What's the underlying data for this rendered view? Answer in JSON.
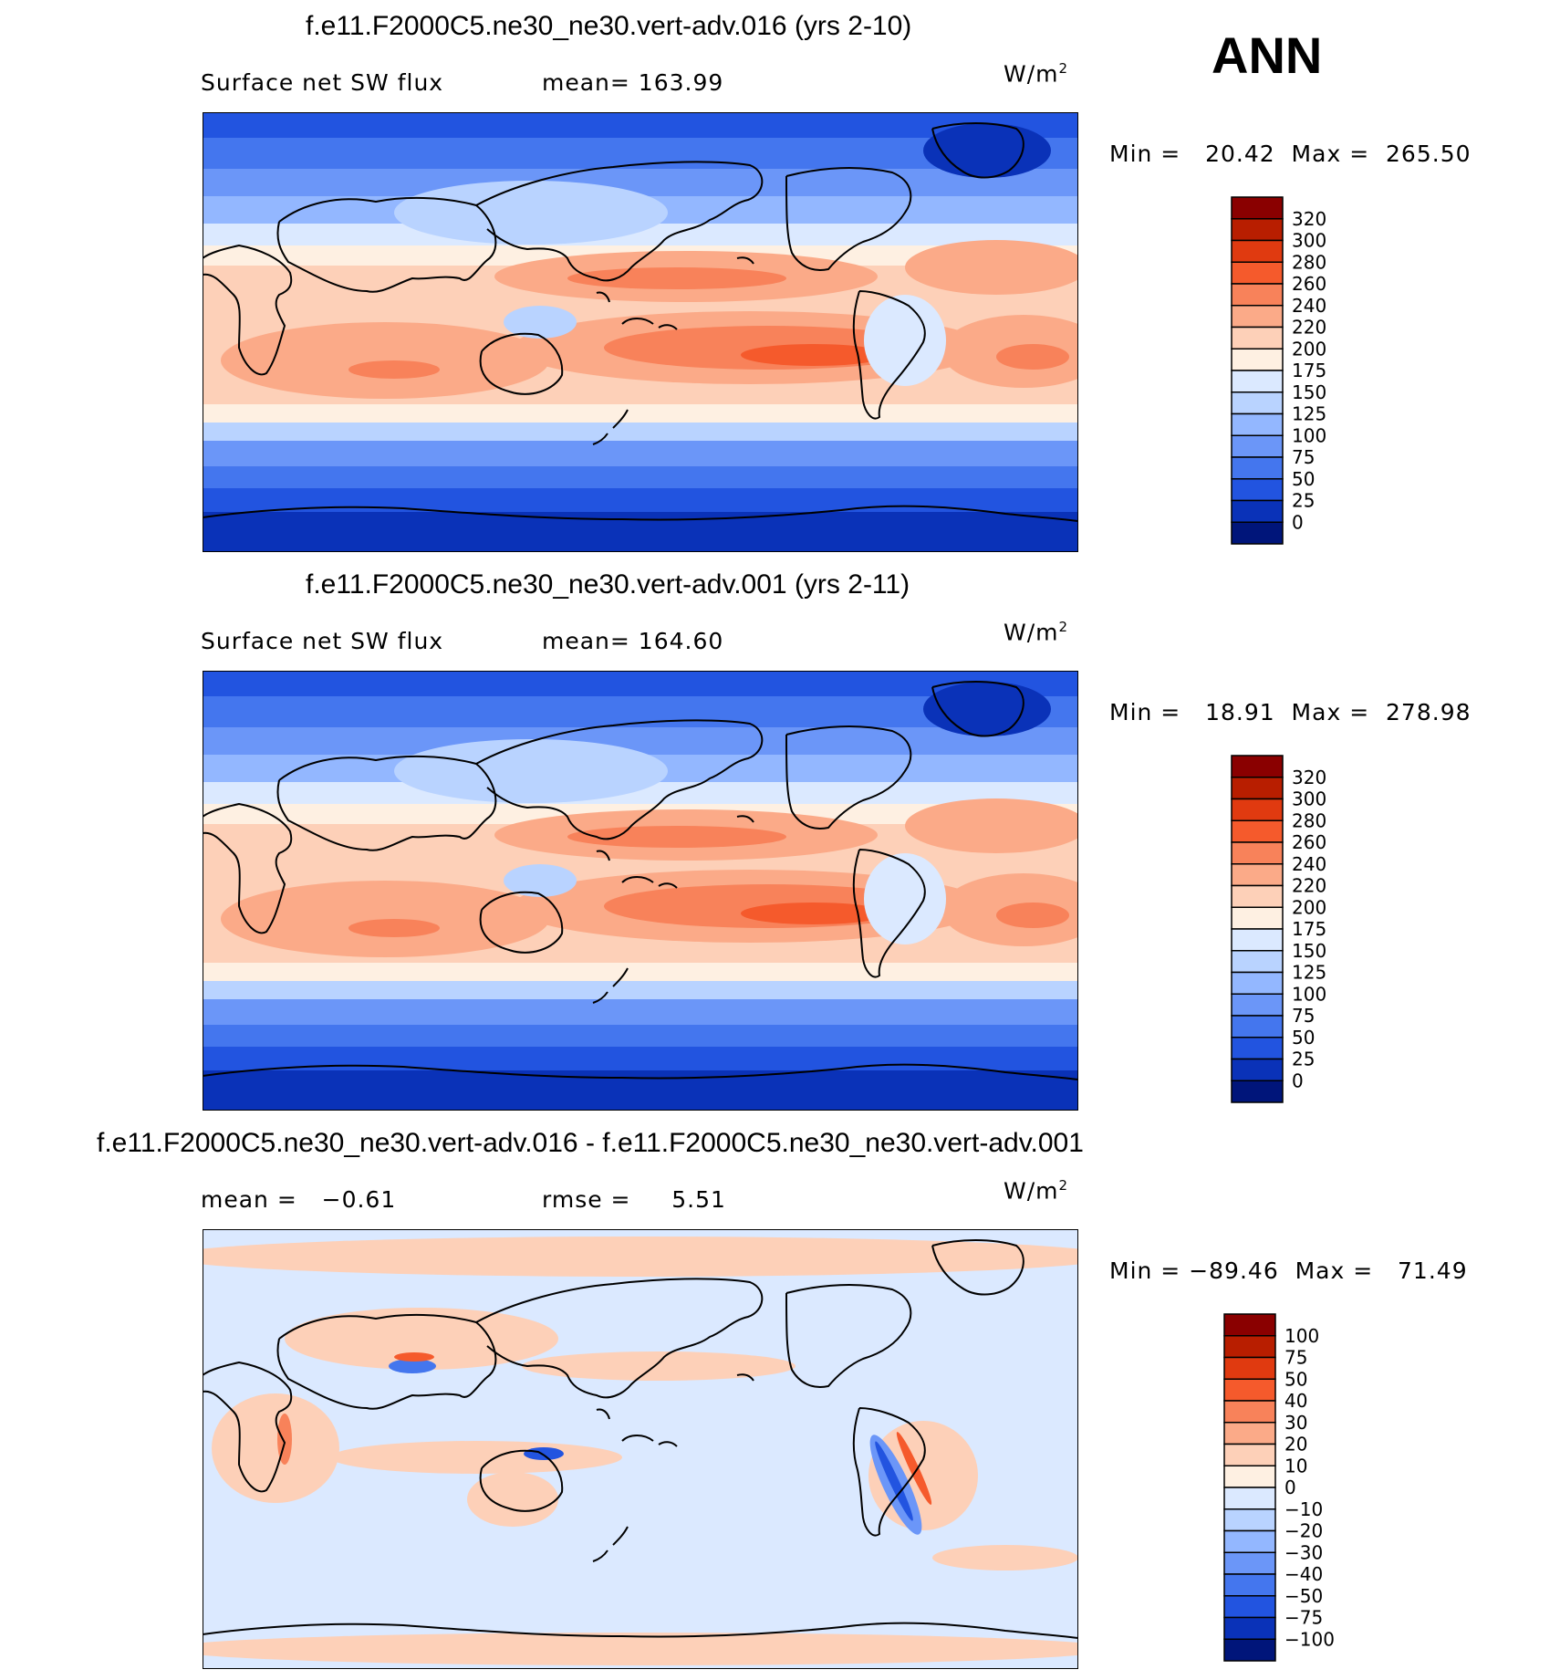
{
  "season": "ANN",
  "chart_data": [
    {
      "type": "heatmap",
      "title": "f.e11.F2000C5.ne30_ne30.vert-adv.016 (yrs 2-10)",
      "left_label": "Surface net SW flux",
      "center_label": "mean= 163.99",
      "unit_base": "W/m",
      "unit_exp": "2",
      "min_max": "Min =   20.42  Max =  265.50",
      "mean": 163.99,
      "min": 20.42,
      "max": 265.5,
      "colorbar_levels": [
        "320",
        "300",
        "280",
        "260",
        "240",
        "220",
        "200",
        "175",
        "150",
        "125",
        "100",
        "75",
        "50",
        "25",
        "0"
      ],
      "colorbar_colors": [
        "#8a0000",
        "#b81e00",
        "#e03a10",
        "#f55a2c",
        "#f8825a",
        "#fbaa88",
        "#fdd0b8",
        "#fef0e2",
        "#dbe9ff",
        "#b9d3ff",
        "#93b7ff",
        "#6b96f8",
        "#4476ee",
        "#2254e0",
        "#0a32b8",
        "#00157a"
      ]
    },
    {
      "type": "heatmap",
      "title": "f.e11.F2000C5.ne30_ne30.vert-adv.001 (yrs 2-11)",
      "left_label": "Surface net SW flux",
      "center_label": "mean= 164.60",
      "unit_base": "W/m",
      "unit_exp": "2",
      "min_max": "Min =   18.91  Max =  278.98",
      "mean": 164.6,
      "min": 18.91,
      "max": 278.98,
      "colorbar_levels": [
        "320",
        "300",
        "280",
        "260",
        "240",
        "220",
        "200",
        "175",
        "150",
        "125",
        "100",
        "75",
        "50",
        "25",
        "0"
      ],
      "colorbar_colors": [
        "#8a0000",
        "#b81e00",
        "#e03a10",
        "#f55a2c",
        "#f8825a",
        "#fbaa88",
        "#fdd0b8",
        "#fef0e2",
        "#dbe9ff",
        "#b9d3ff",
        "#93b7ff",
        "#6b96f8",
        "#4476ee",
        "#2254e0",
        "#0a32b8",
        "#00157a"
      ]
    },
    {
      "type": "heatmap",
      "title": "f.e11.F2000C5.ne30_ne30.vert-adv.016 - f.e11.F2000C5.ne30_ne30.vert-adv.001",
      "left_label": "mean =   −0.61",
      "center_label": "rmse =     5.51",
      "unit_base": "W/m",
      "unit_exp": "2",
      "min_max": "Min = −89.46  Max =   71.49",
      "mean": -0.61,
      "rmse": 5.51,
      "min": -89.46,
      "max": 71.49,
      "colorbar_levels": [
        "100",
        "75",
        "50",
        "40",
        "30",
        "20",
        "10",
        "0",
        "−10",
        "−20",
        "−30",
        "−40",
        "−50",
        "−75",
        "−100"
      ],
      "colorbar_colors": [
        "#8a0000",
        "#b81e00",
        "#e03a10",
        "#f55a2c",
        "#f8825a",
        "#fbaa88",
        "#fdd0b8",
        "#fef0e2",
        "#dbe9ff",
        "#b9d3ff",
        "#93b7ff",
        "#6b96f8",
        "#4476ee",
        "#2254e0",
        "#0a32b8",
        "#00157a"
      ]
    }
  ]
}
